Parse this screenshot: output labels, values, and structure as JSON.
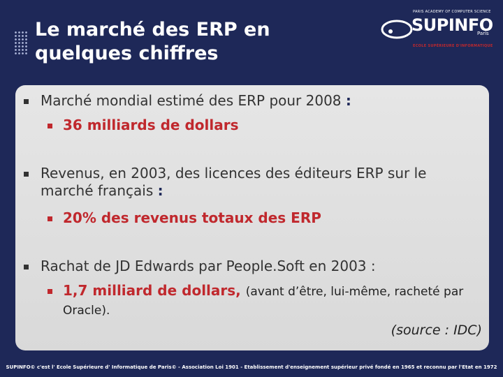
{
  "header": {
    "title": "Le marché des ERP en quelques chiffres"
  },
  "logo": {
    "tagline": "PARIS ACADEMY OF COMPUTER SCIENCE",
    "name": "SUPINFO",
    "city": "Paris",
    "subtitle": "ECOLE SUPÉRIEURE D'INFORMATIQUE"
  },
  "bullets": [
    {
      "text": "Marché mondial estimé des ERP pour 2008",
      "colon": ":",
      "sub": {
        "text": "36 milliards de dollars"
      }
    },
    {
      "text": "Revenus, en 2003, des licences des éditeurs ERP sur le marché français",
      "colon": ":",
      "sub": {
        "text": "20% des revenus totaux des ERP"
      }
    },
    {
      "text": "Rachat de JD Edwards par People.Soft en 2003 :",
      "sub": {
        "text": "1,7 milliard de dollars,",
        "note": "(avant d’être, lui-même, racheté par Oracle)."
      }
    }
  ],
  "source": "(source : IDC)",
  "footer": "SUPINFO© c'est l' Ecole Supérieure d' Informatique de Paris© - Association Loi 1901 - Etablissement d'enseignement supérieur privé fondé en 1965 et reconnu par l'Etat en 1972"
}
